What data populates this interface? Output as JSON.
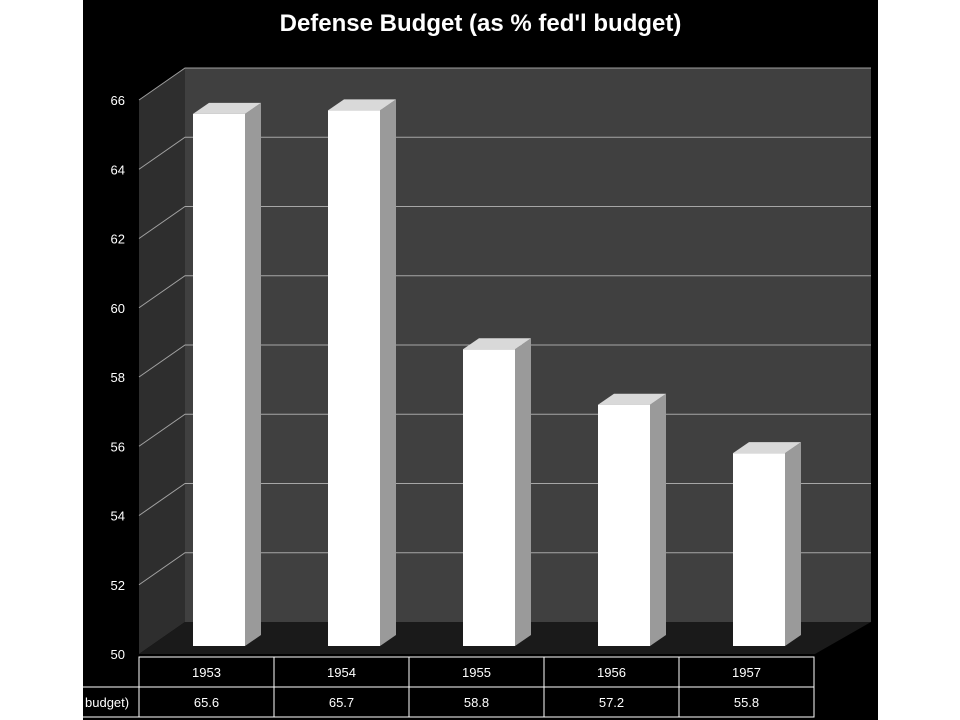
{
  "chart_data": {
    "type": "bar",
    "title": "Defense Budget (as % fed'l budget)",
    "categories": [
      "1953",
      "1954",
      "1955",
      "1956",
      "1957"
    ],
    "series": [
      {
        "name": "budget)",
        "values": [
          65.6,
          65.7,
          58.8,
          57.2,
          55.8
        ]
      }
    ],
    "value_labels": [
      "65.6",
      "65.7",
      "58.8",
      "57.2",
      "55.8"
    ],
    "ylim": [
      50,
      66
    ],
    "y_ticks": [
      50,
      52,
      54,
      56,
      58,
      60,
      62,
      64,
      66
    ],
    "y_tick_labels": [
      "50",
      "52",
      "54",
      "56",
      "58",
      "60",
      "62",
      "64",
      "66"
    ],
    "xlabel": "",
    "ylabel": "",
    "grid": true,
    "legend": "data table below plot",
    "colors": {
      "background": "#000000",
      "back_wall": "#404040",
      "side_wall": "#2e2e2e",
      "floor": "#1a1a1a",
      "gridline": "#bfbfbf",
      "bar_front": "#ffffff",
      "bar_side": "#9a9a9a",
      "bar_top": "#d9d9d9",
      "text": "#ffffff"
    }
  }
}
